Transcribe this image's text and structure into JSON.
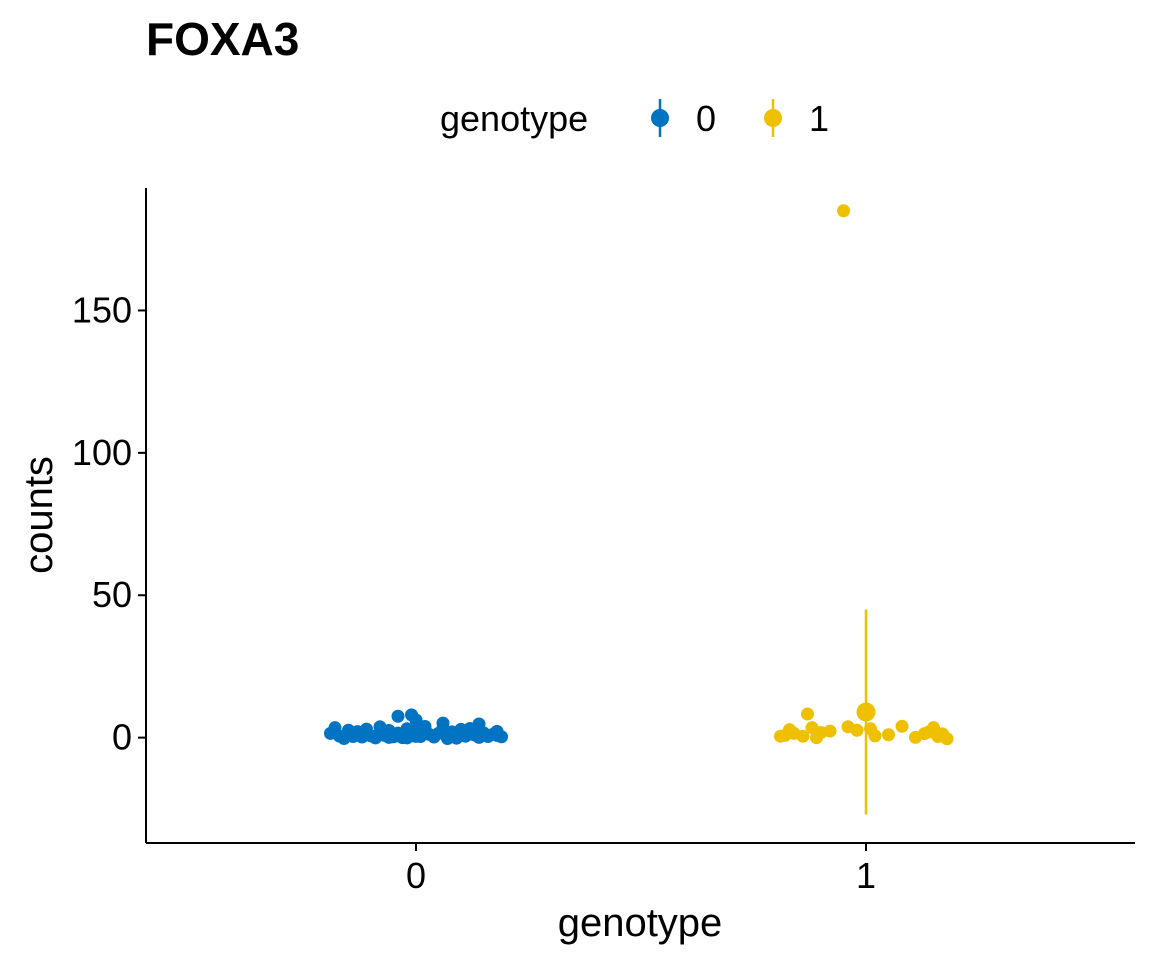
{
  "chart_data": {
    "type": "scatter",
    "title": "FOXA3",
    "xlabel": "genotype",
    "ylabel": "counts",
    "legend": {
      "title": "genotype",
      "position": "top",
      "entries": [
        {
          "label": "0",
          "color": "#0073C2"
        },
        {
          "label": "1",
          "color": "#EFC000"
        }
      ]
    },
    "x_categories": [
      "0",
      "1"
    ],
    "x_tick_labels": [
      "0",
      "1"
    ],
    "y_tick_values": [
      0,
      50,
      100,
      150
    ],
    "y_tick_labels": [
      "0",
      "50",
      "100",
      "150"
    ],
    "ylim": [
      -37,
      193
    ],
    "grid": false,
    "series": [
      {
        "name": "0",
        "color": "#0073C2",
        "points": [
          [
            -0.19,
            1.5
          ],
          [
            -0.18,
            3.5
          ],
          [
            -0.17,
            0.5
          ],
          [
            -0.16,
            -0.3
          ],
          [
            -0.15,
            1.2
          ],
          [
            -0.14,
            0.4
          ],
          [
            -0.13,
            2.1
          ],
          [
            -0.12,
            0.2
          ],
          [
            -0.11,
            1.0
          ],
          [
            -0.1,
            0.6
          ],
          [
            -0.09,
            -0.1
          ],
          [
            -0.08,
            3.8
          ],
          [
            -0.08,
            1.8
          ],
          [
            -0.07,
            0.8
          ],
          [
            -0.06,
            2.5
          ],
          [
            -0.05,
            0.3
          ],
          [
            -0.04,
            1.6
          ],
          [
            -0.03,
            0.0
          ],
          [
            -0.02,
            3.1
          ],
          [
            -0.02,
            0.9
          ],
          [
            -0.01,
            2.0
          ],
          [
            0.0,
            1.2
          ],
          [
            0.01,
            0.4
          ],
          [
            0.02,
            2.6
          ],
          [
            0.03,
            1.1
          ],
          [
            0.04,
            0.2
          ],
          [
            0.05,
            1.5
          ],
          [
            0.06,
            3.4
          ],
          [
            0.07,
            0.7
          ],
          [
            0.08,
            2.0
          ],
          [
            0.09,
            -0.2
          ],
          [
            0.1,
            1.3
          ],
          [
            0.11,
            0.5
          ],
          [
            0.12,
            2.4
          ],
          [
            0.13,
            0.9
          ],
          [
            0.14,
            0.1
          ],
          [
            0.15,
            1.7
          ],
          [
            0.16,
            0.4
          ],
          [
            0.17,
            1.1
          ],
          [
            0.18,
            2.2
          ],
          [
            0.19,
            0.3
          ],
          [
            -0.04,
            7.5
          ],
          [
            -0.01,
            8.0
          ],
          [
            0.0,
            6.2
          ],
          [
            0.06,
            5.1
          ],
          [
            0.14,
            4.8
          ],
          [
            -0.11,
            3.0
          ],
          [
            0.02,
            3.9
          ],
          [
            -0.06,
            0.1
          ],
          [
            0.1,
            2.9
          ],
          [
            -0.15,
            2.6
          ],
          [
            0.18,
            0.8
          ],
          [
            0.07,
            -0.3
          ],
          [
            -0.02,
            -0.1
          ],
          [
            0.12,
            3.2
          ]
        ]
      },
      {
        "name": "1",
        "color": "#EFC000",
        "points": [
          [
            -0.18,
            0.8
          ],
          [
            -0.17,
            2.8
          ],
          [
            -0.16,
            1.5
          ],
          [
            -0.14,
            0.5
          ],
          [
            -0.13,
            8.3
          ],
          [
            -0.12,
            3.5
          ],
          [
            -0.11,
            0.0
          ],
          [
            -0.1,
            1.8
          ],
          [
            -0.08,
            2.3
          ],
          [
            -0.05,
            185.0
          ],
          [
            -0.04,
            3.8
          ],
          [
            -0.02,
            2.6
          ],
          [
            0.01,
            3.1
          ],
          [
            0.02,
            0.6
          ],
          [
            0.08,
            4.0
          ],
          [
            0.11,
            0.1
          ],
          [
            0.13,
            1.4
          ],
          [
            0.15,
            3.5
          ],
          [
            0.16,
            0.4
          ],
          [
            0.17,
            1.3
          ],
          [
            0.18,
            -0.4
          ],
          [
            -0.19,
            0.5
          ],
          [
            0.05,
            1.0
          ],
          [
            0.14,
            2.0
          ]
        ]
      }
    ],
    "summary": [
      {
        "name": "0",
        "color": "#0073C2",
        "mean": 1.5,
        "lower": 0.9,
        "upper": 2.1
      },
      {
        "name": "1",
        "color": "#EFC000",
        "mean": 9.0,
        "lower": -27.0,
        "upper": 45.0
      }
    ]
  }
}
